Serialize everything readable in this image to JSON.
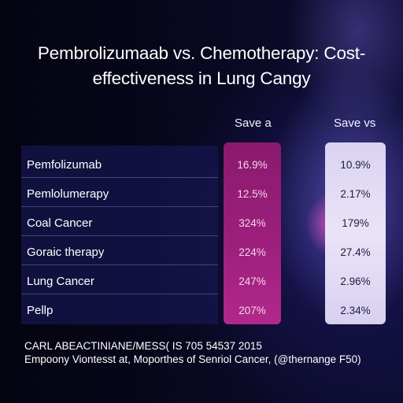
{
  "chart_data": {
    "type": "table",
    "title": "Pembrolizumaab vs. Chemotherapy: Cost-\neffectiveness in Lung Cangy",
    "columns": [
      "Save a",
      "Save vs"
    ],
    "rows": [
      {
        "label": "Pemfolizumab",
        "values": [
          "16.9%",
          "10.9%"
        ]
      },
      {
        "label": "Pemlolumerapy",
        "values": [
          "12.5%",
          "2.17%"
        ]
      },
      {
        "label": "Coal Cancer",
        "values": [
          "324%",
          "179%"
        ]
      },
      {
        "label": "Goraic therapy",
        "values": [
          "224%",
          "27.4%"
        ]
      },
      {
        "label": "Lung Cancer",
        "values": [
          "247%",
          "2.96%"
        ]
      },
      {
        "label": "Pellp",
        "values": [
          "207%",
          "2.34%"
        ]
      }
    ]
  },
  "footer": {
    "line1": "CARL ABEACTINIANE/MESS( IS 705 54537 2015",
    "line2": "Empoony Viontesst at, Moporthes of Senriol Cancer, (@thernange F50)"
  },
  "colors": {
    "column_a_fill": "#9c1f7c",
    "column_b_fill": "#ece3f8",
    "background": "#050514"
  }
}
